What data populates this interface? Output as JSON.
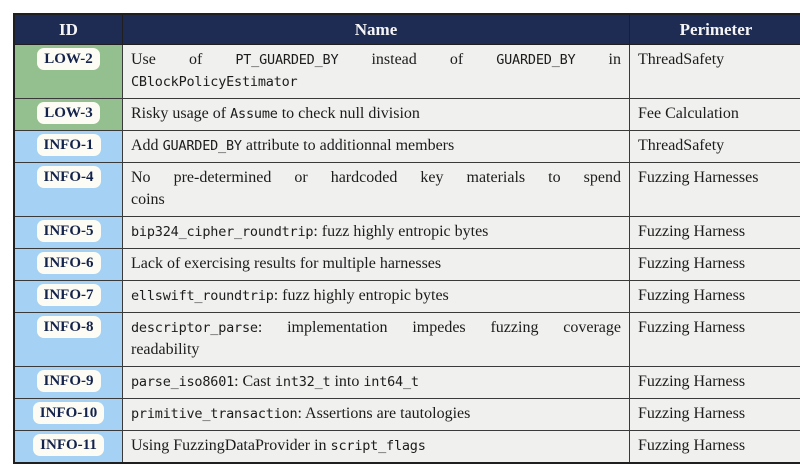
{
  "colors": {
    "header_bg": "#1e2b52",
    "header_text": "#f5f5f5",
    "low_bg": "#94c08f",
    "info_bg": "#a5d2f4",
    "badge_bg": "#fcfcf4",
    "badge_text": "#14234c",
    "row_bg": "#f0f0ee",
    "border": "#3a3a3a",
    "text": "#1c1c1c"
  },
  "table": {
    "columns": [
      {
        "label": "ID"
      },
      {
        "label": "Name"
      },
      {
        "label": "Perimeter"
      }
    ],
    "rows": [
      {
        "id": "LOW-2",
        "severity": "low",
        "perimeter": "ThreadSafety",
        "name_lines": [
          {
            "justify": true,
            "segments": [
              {
                "t": "Use of "
              },
              {
                "t": "PT_GUARDED_BY",
                "mono": true
              },
              {
                "t": " instead of "
              },
              {
                "t": "GUARDED_BY",
                "mono": true
              },
              {
                "t": " in"
              }
            ]
          },
          {
            "segments": [
              {
                "t": "CBlockPolicyEstimator",
                "mono": true
              }
            ]
          }
        ]
      },
      {
        "id": "LOW-3",
        "severity": "low",
        "perimeter": "Fee Calculation",
        "name_lines": [
          {
            "segments": [
              {
                "t": "Risky usage of "
              },
              {
                "t": "Assume",
                "mono": true
              },
              {
                "t": " to check null division"
              }
            ]
          }
        ]
      },
      {
        "id": "INFO-1",
        "severity": "info",
        "perimeter": "ThreadSafety",
        "name_lines": [
          {
            "segments": [
              {
                "t": "Add "
              },
              {
                "t": "GUARDED_BY",
                "mono": true
              },
              {
                "t": " attribute to additionnal members"
              }
            ]
          }
        ]
      },
      {
        "id": "INFO-4",
        "severity": "info",
        "perimeter": "Fuzzing Harnesses",
        "name_lines": [
          {
            "justify": true,
            "segments": [
              {
                "t": "No pre-determined or hardcoded key materials to spend"
              }
            ]
          },
          {
            "segments": [
              {
                "t": "coins"
              }
            ]
          }
        ]
      },
      {
        "id": "INFO-5",
        "severity": "info",
        "perimeter": "Fuzzing Harness",
        "name_lines": [
          {
            "segments": [
              {
                "t": "bip324_cipher_roundtrip",
                "mono": true
              },
              {
                "t": ": fuzz highly entropic bytes"
              }
            ]
          }
        ]
      },
      {
        "id": "INFO-6",
        "severity": "info",
        "perimeter": "Fuzzing Harness",
        "name_lines": [
          {
            "segments": [
              {
                "t": "Lack of exercising results for multiple harnesses"
              }
            ]
          }
        ]
      },
      {
        "id": "INFO-7",
        "severity": "info",
        "perimeter": "Fuzzing Harness",
        "name_lines": [
          {
            "segments": [
              {
                "t": "ellswift_roundtrip",
                "mono": true
              },
              {
                "t": ": fuzz highly entropic bytes"
              }
            ]
          }
        ]
      },
      {
        "id": "INFO-8",
        "severity": "info",
        "perimeter": "Fuzzing Harness",
        "name_lines": [
          {
            "justify": true,
            "segments": [
              {
                "t": "descriptor_parse",
                "mono": true
              },
              {
                "t": ": implementation impedes fuzzing coverage"
              }
            ]
          },
          {
            "segments": [
              {
                "t": "readability"
              }
            ]
          }
        ]
      },
      {
        "id": "INFO-9",
        "severity": "info",
        "perimeter": "Fuzzing Harness",
        "name_lines": [
          {
            "segments": [
              {
                "t": "parse_iso8601",
                "mono": true
              },
              {
                "t": ": Cast "
              },
              {
                "t": "int32_t",
                "mono": true
              },
              {
                "t": " into "
              },
              {
                "t": "int64_t",
                "mono": true
              }
            ]
          }
        ]
      },
      {
        "id": "INFO-10",
        "severity": "info",
        "perimeter": "Fuzzing Harness",
        "name_lines": [
          {
            "segments": [
              {
                "t": "primitive_transaction",
                "mono": true
              },
              {
                "t": ": Assertions are tautologies"
              }
            ]
          }
        ]
      },
      {
        "id": "INFO-11",
        "severity": "info",
        "perimeter": "Fuzzing Harness",
        "name_lines": [
          {
            "segments": [
              {
                "t": "Using FuzzingDataProvider in "
              },
              {
                "t": "script_flags",
                "mono": true
              }
            ]
          }
        ]
      }
    ]
  }
}
